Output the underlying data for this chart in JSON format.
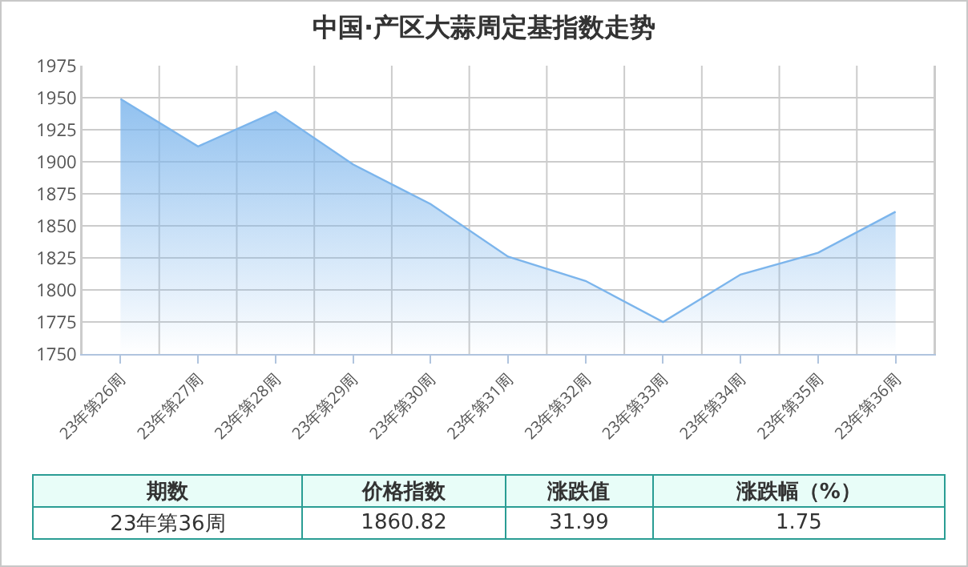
{
  "chart_data": {
    "type": "area",
    "title": "中国·产区大蒜周定基指数走势",
    "categories": [
      "23年第26周",
      "23年第27周",
      "23年第28周",
      "23年第29周",
      "23年第30周",
      "23年第31周",
      "23年第32周",
      "23年第33周",
      "23年第34周",
      "23年第35周",
      "23年第36周"
    ],
    "series": [
      {
        "color": "#7cb5ec",
        "values": [
          1949,
          1912,
          1939,
          1898,
          1867,
          1826,
          1807,
          1775,
          1812,
          1829,
          1861
        ]
      }
    ],
    "ylim": [
      1750,
      1975
    ],
    "yticks": [
      1750,
      1775,
      1800,
      1825,
      1850,
      1875,
      1900,
      1925,
      1950,
      1975
    ],
    "grid": true,
    "marker": "none",
    "annotations": [
      "期数",
      "价格指数",
      "涨跌值",
      "涨跌幅（%）",
      "23年第36周",
      "1860.82",
      "31.99",
      "1.75"
    ]
  }
}
